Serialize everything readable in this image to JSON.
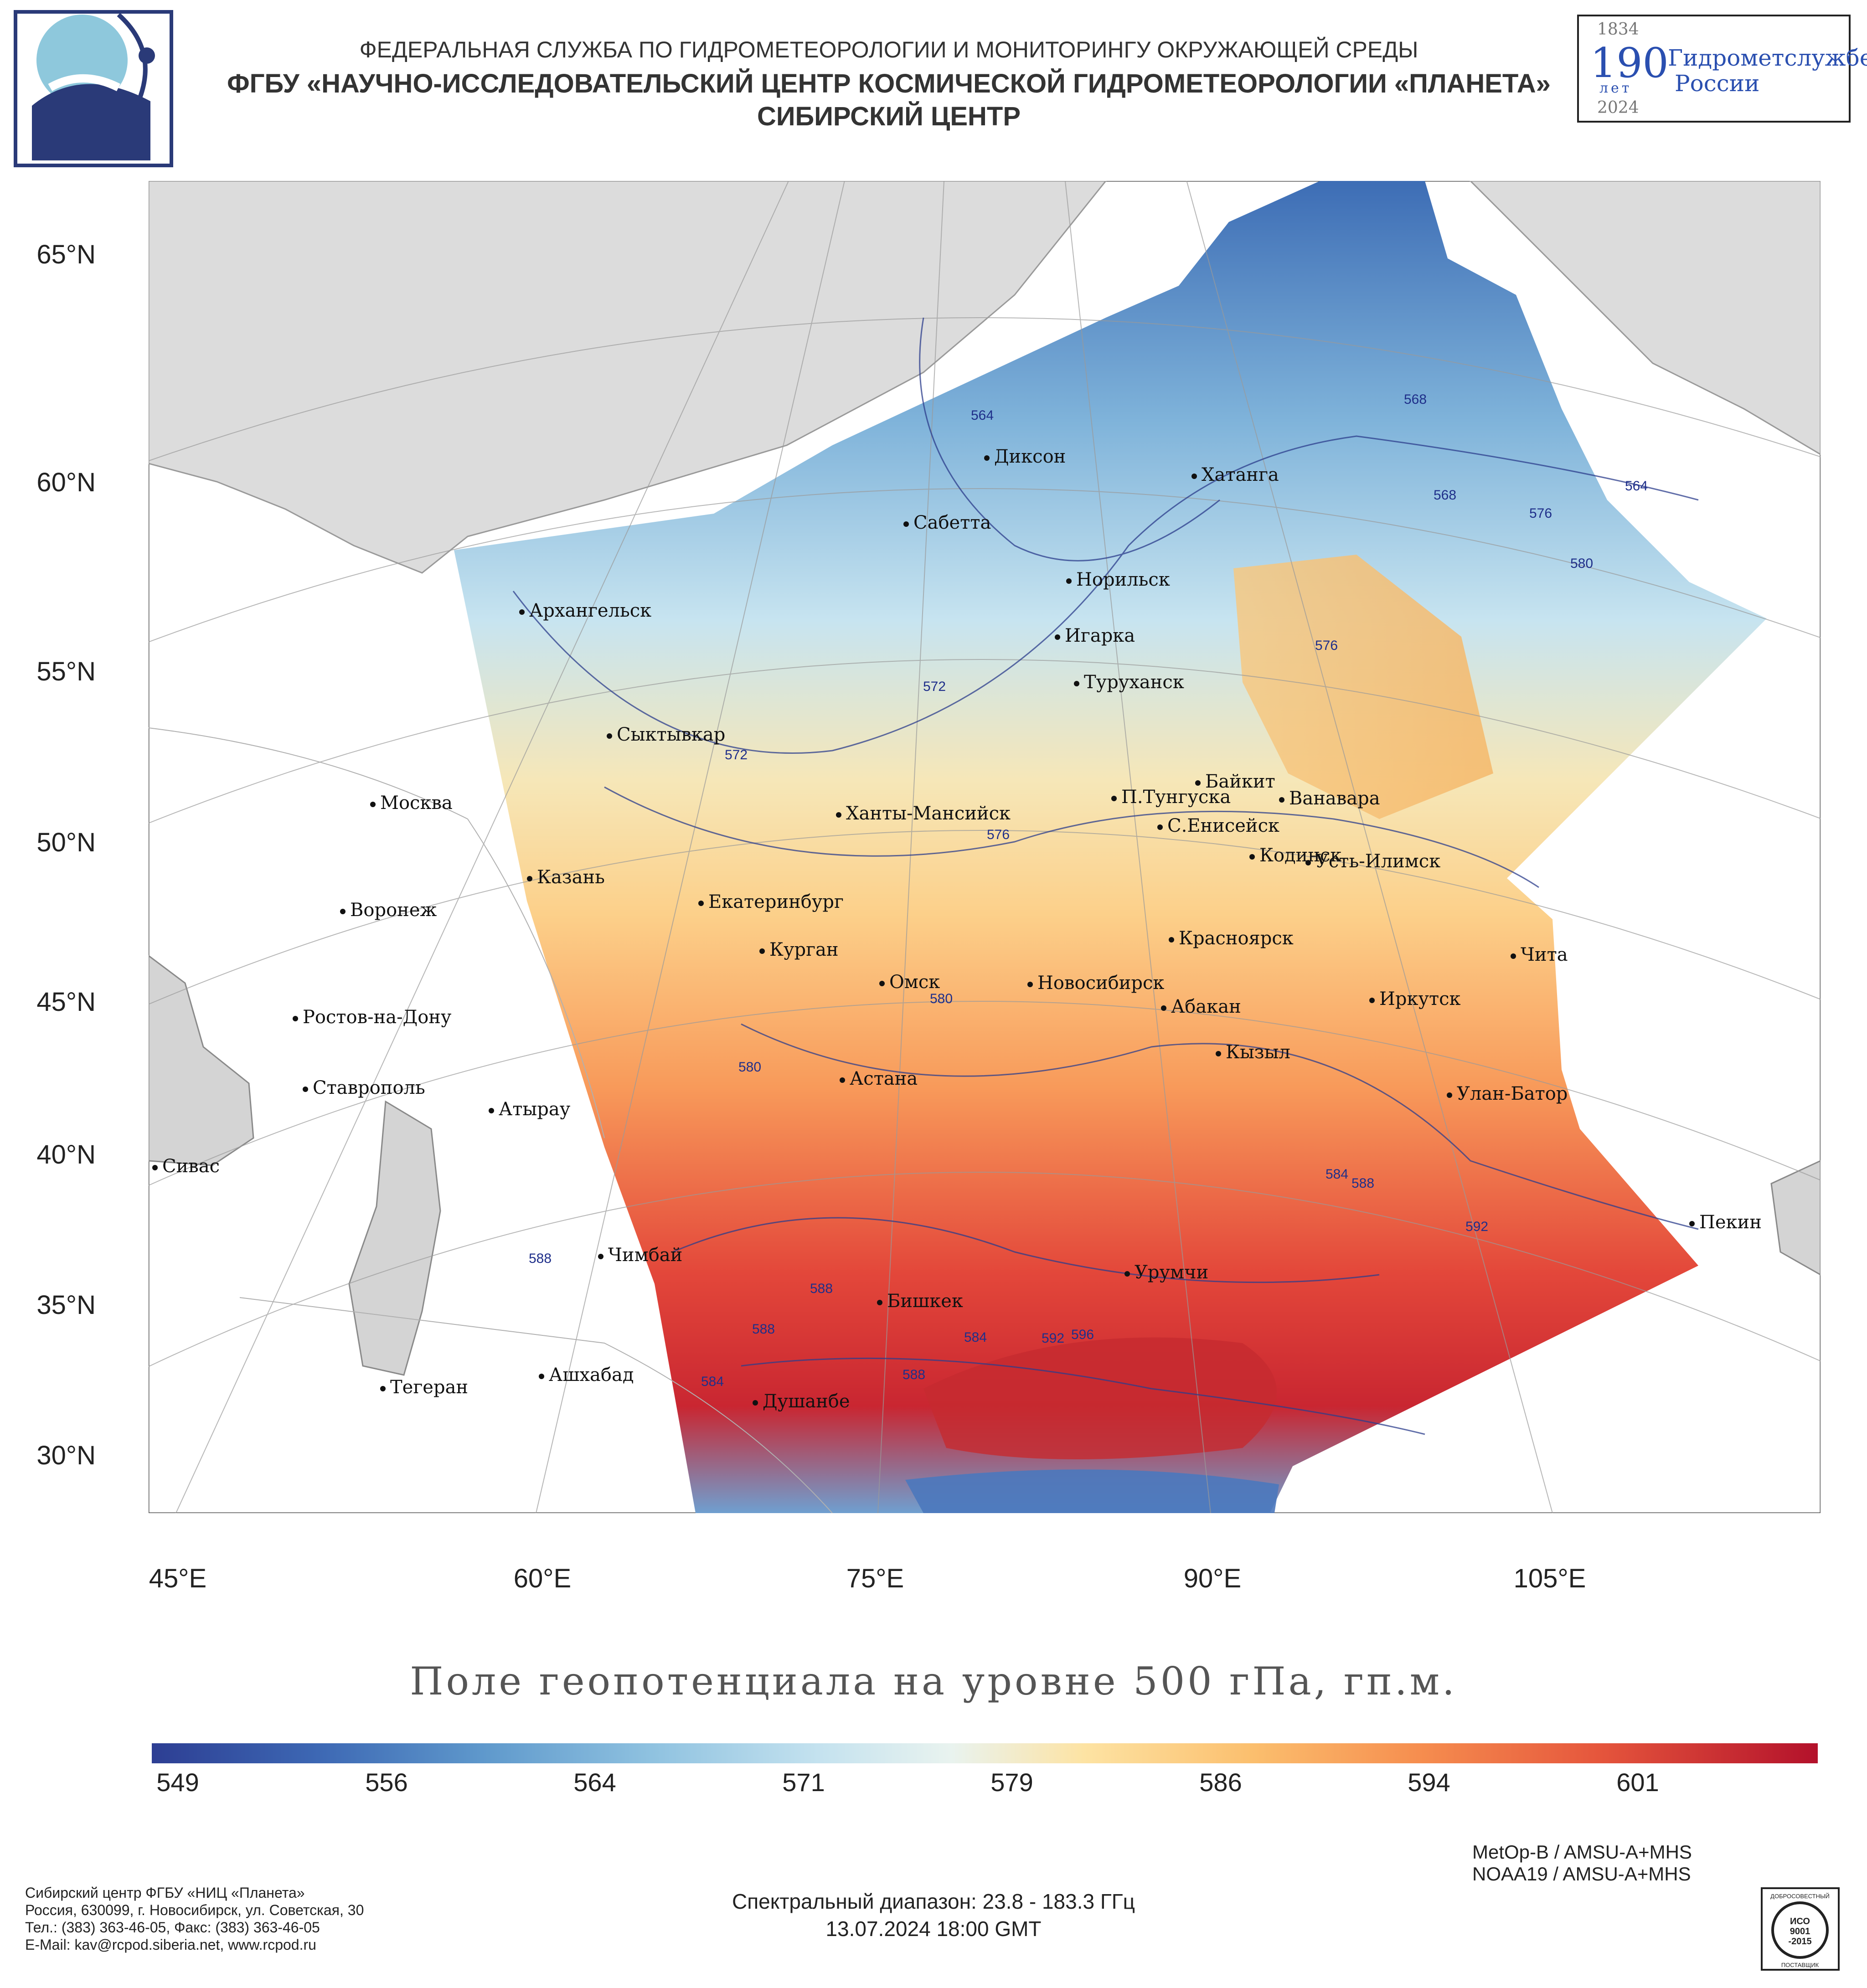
{
  "header": {
    "line1": "ФЕДЕРАЛЬНАЯ СЛУЖБА ПО ГИДРОМЕТЕОРОЛОГИИ И МОНИТОРИНГУ ОКРУЖАЮЩЕЙ СРЕДЫ",
    "line2": "ФГБУ «НАУЧНО-ИССЛЕДОВАТЕЛЬСКИЙ ЦЕНТР КОСМИЧЕСКОЙ ГИДРОМЕТЕОРОЛОГИИ «ПЛАНЕТА»",
    "line3": "СИБИРСКИЙ ЦЕНТР"
  },
  "anniversary_logo": {
    "year_start": "1834",
    "year_end": "2024",
    "number": "190",
    "years_word": "лет",
    "text_line1": "Гидрометслужбе",
    "text_line2": "России"
  },
  "map": {
    "title": "Поле геопотенциала на уровне 500 гПа, гп.м.",
    "lat_labels": [
      "65°N",
      "60°N",
      "55°N",
      "50°N",
      "45°N",
      "40°N",
      "35°N",
      "30°N"
    ],
    "lon_labels": [
      "45°E",
      "60°E",
      "75°E",
      "90°E",
      "105°E"
    ],
    "cities": [
      {
        "name": "Диксон"
      },
      {
        "name": "Хатанга"
      },
      {
        "name": "Сабетта"
      },
      {
        "name": "Архангельск"
      },
      {
        "name": "Норильск"
      },
      {
        "name": "Игарка"
      },
      {
        "name": "Туруханск"
      },
      {
        "name": "Сыктывкар"
      },
      {
        "name": "Москва"
      },
      {
        "name": "Байкит"
      },
      {
        "name": "П.Тунгуска"
      },
      {
        "name": "Ванавара"
      },
      {
        "name": "Ханты-Мансийск"
      },
      {
        "name": "С.Енисейск"
      },
      {
        "name": "Кодинск"
      },
      {
        "name": "Усть-Илимск"
      },
      {
        "name": "Казань"
      },
      {
        "name": "Екатеринбург"
      },
      {
        "name": "Воронеж"
      },
      {
        "name": "Красноярск"
      },
      {
        "name": "Курган"
      },
      {
        "name": "Чита"
      },
      {
        "name": "Омск"
      },
      {
        "name": "Новосибирск"
      },
      {
        "name": "Иркутск"
      },
      {
        "name": "Ростов-на-Дону"
      },
      {
        "name": "Абакан"
      },
      {
        "name": "Кызыл"
      },
      {
        "name": "Ставрополь"
      },
      {
        "name": "Астана"
      },
      {
        "name": "Улан-Батор"
      },
      {
        "name": "Атырау"
      },
      {
        "name": "Сивас"
      },
      {
        "name": "Пекин"
      },
      {
        "name": "Чимбай"
      },
      {
        "name": "Урумчи"
      },
      {
        "name": "Бишкек"
      },
      {
        "name": "Ашхабад"
      },
      {
        "name": "Тегеран"
      },
      {
        "name": "Душанбе"
      }
    ],
    "contour_labels": [
      "564",
      "568",
      "572",
      "576",
      "580",
      "584",
      "588",
      "592",
      "596"
    ]
  },
  "colorbar": {
    "ticks": [
      "549",
      "556",
      "564",
      "571",
      "579",
      "586",
      "594",
      "601"
    ]
  },
  "footer": {
    "sensor1": "MetOp-B / AMSU-A+MHS",
    "sensor2": "NOAA19 / AMSU-A+MHS",
    "spectral": "Спектральный диапазон: 23.8 - 183.3 ГГц",
    "datetime": "13.07.2024 18:00 GMT",
    "address": [
      "Сибирский центр ФГБУ «НИЦ «Планета»",
      "Россия, 630099, г. Новосибирск, ул. Советская, 30",
      "Тел.: (383) 363-46-05, Факс: (383) 363-46-05",
      "E-Mail: kav@rcpod.siberia.net, www.rcpod.ru"
    ],
    "iso_badge": {
      "top": "ДОБРОСОВЕСТНЫЙ",
      "line1": "ИСО",
      "line2": "9001",
      "line3": "-2015",
      "bottom": "ПОСТАВЩИК"
    }
  }
}
